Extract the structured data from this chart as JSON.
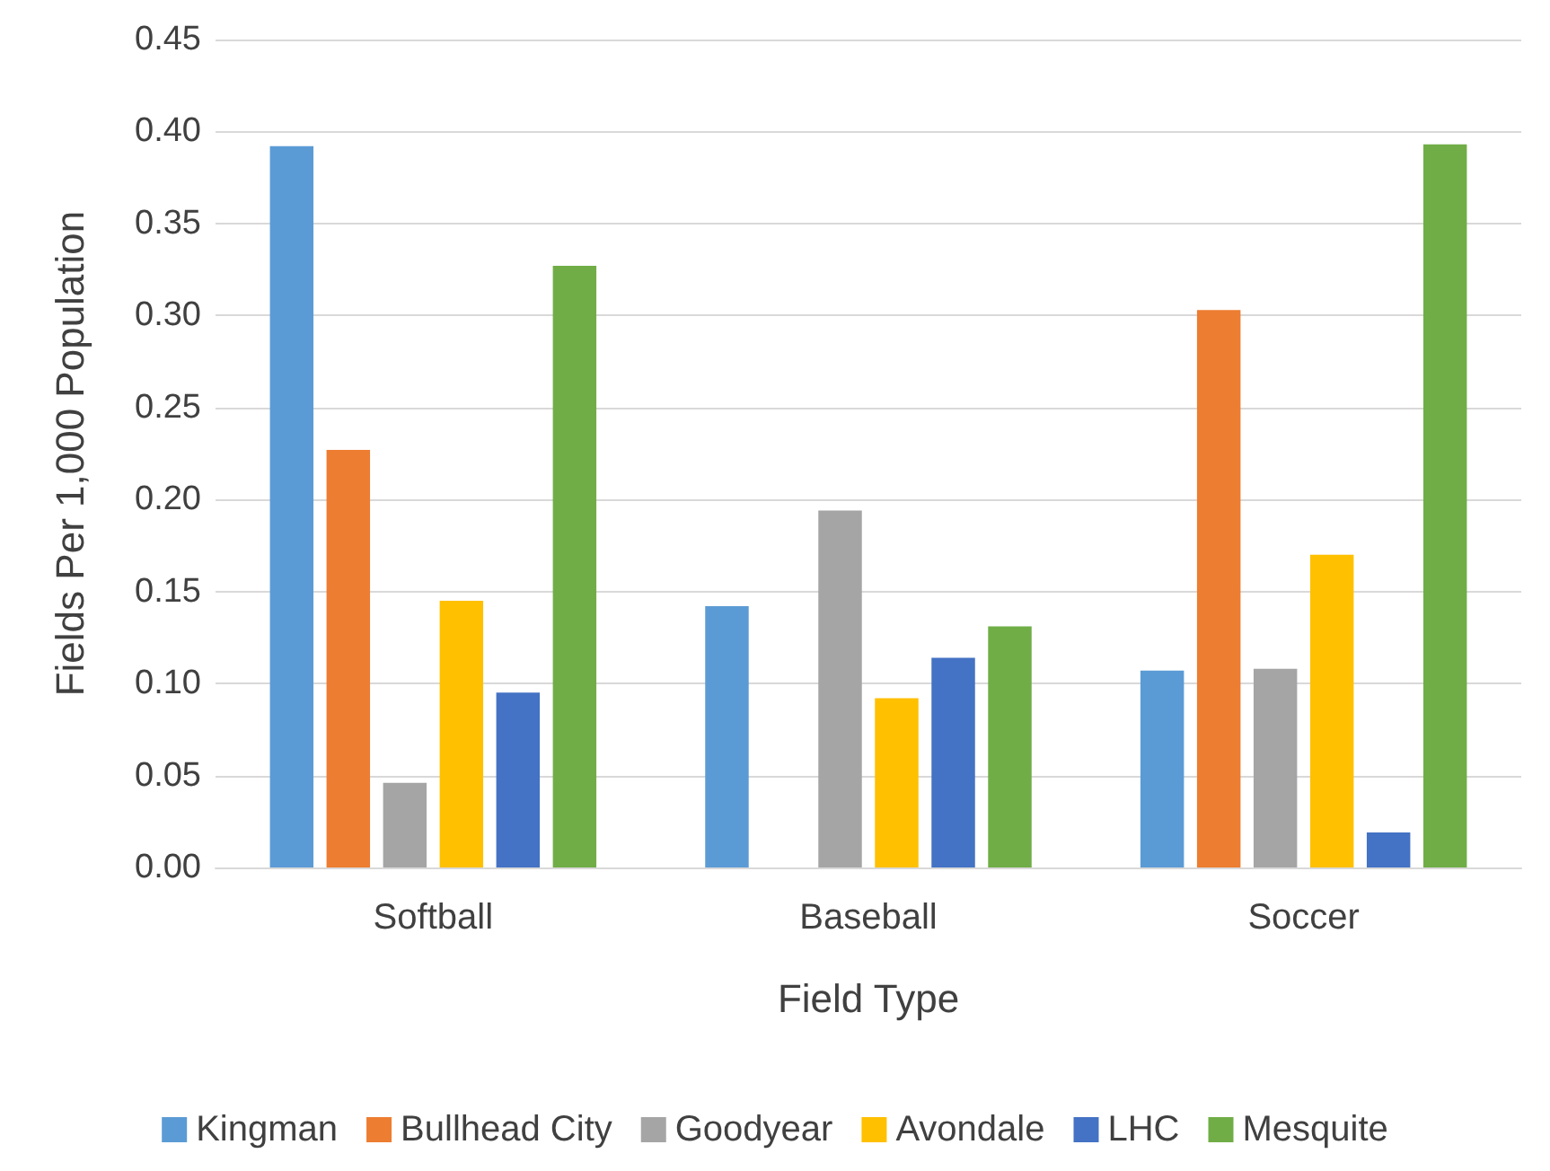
{
  "chart_data": {
    "type": "bar",
    "xlabel": "Field Type",
    "ylabel": "Fields Per 1,000 Population",
    "categories": [
      "Softball",
      "Baseball",
      "Soccer"
    ],
    "series": [
      {
        "name": "Kingman",
        "color": "#5b9bd5",
        "values": [
          0.392,
          0.142,
          0.107
        ]
      },
      {
        "name": "Bullhead City",
        "color": "#ed7d31",
        "values": [
          0.227,
          0,
          0.303
        ]
      },
      {
        "name": "Goodyear",
        "color": "#a5a5a5",
        "values": [
          0.046,
          0.194,
          0.108
        ]
      },
      {
        "name": "Avondale",
        "color": "#ffc000",
        "values": [
          0.145,
          0.092,
          0.17
        ]
      },
      {
        "name": "LHC",
        "color": "#4472c4",
        "values": [
          0.095,
          0.114,
          0.019
        ]
      },
      {
        "name": "Mesquite",
        "color": "#70ad47",
        "values": [
          0.327,
          0.131,
          0.393
        ]
      }
    ],
    "ylim": [
      0,
      0.45
    ],
    "yticks": [
      {
        "value": 0,
        "label": "0.00"
      },
      {
        "value": 0.05,
        "label": "0.05"
      },
      {
        "value": 0.1,
        "label": "0.10"
      },
      {
        "value": 0.15,
        "label": "0.15"
      },
      {
        "value": 0.2,
        "label": "0.20"
      },
      {
        "value": 0.25,
        "label": "0.25"
      },
      {
        "value": 0.3,
        "label": "0.30"
      },
      {
        "value": 0.35,
        "label": "0.35"
      },
      {
        "value": 0.4,
        "label": "0.40"
      },
      {
        "value": 0.45,
        "label": "0.45"
      }
    ],
    "grid": "y",
    "legend": "bottom"
  }
}
